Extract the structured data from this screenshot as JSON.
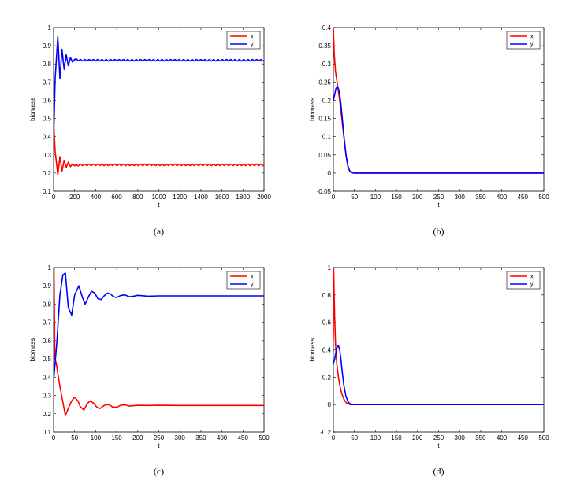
{
  "colors": {
    "x": "#ff0000",
    "y": "#0000ff",
    "axes": "#000000",
    "background": "#ffffff"
  },
  "chart_data": [
    {
      "id": "a",
      "type": "line",
      "caption": "(a)",
      "xlabel": "t",
      "ylabel": "biomass",
      "xlim": [
        0,
        2000
      ],
      "ylim": [
        0.1,
        1
      ],
      "xticks": [
        0,
        200,
        400,
        600,
        800,
        1000,
        1200,
        1400,
        1600,
        1800,
        2000
      ],
      "xtick_labels": [
        "0",
        "200",
        "400",
        "600",
        "800",
        "1000",
        "1200",
        "1400",
        "1600",
        "1800",
        "2000"
      ],
      "yticks": [
        0.1,
        0.2,
        0.3,
        0.4,
        0.5,
        0.6,
        0.7,
        0.8,
        0.9,
        1
      ],
      "ytick_labels": [
        "0.1",
        "0.2",
        "0.3",
        "0.4",
        "0.5",
        "0.6",
        "0.7",
        "0.8",
        "0.9",
        "1"
      ],
      "legend": "top-right",
      "grid": false,
      "series": [
        {
          "name": "x",
          "x": [
            0,
            15,
            40,
            60,
            80,
            100,
            120,
            140,
            160,
            180,
            200,
            250,
            400,
            800,
            1200,
            1600,
            2000
          ],
          "y": [
            0.48,
            0.32,
            0.19,
            0.29,
            0.21,
            0.27,
            0.23,
            0.26,
            0.235,
            0.25,
            0.24,
            0.245,
            0.245,
            0.245,
            0.245,
            0.245,
            0.245
          ]
        },
        {
          "name": "y",
          "x": [
            0,
            15,
            40,
            60,
            80,
            100,
            120,
            140,
            160,
            180,
            200,
            250,
            400,
            800,
            1200,
            1600,
            2000
          ],
          "y": [
            0.38,
            0.72,
            0.95,
            0.72,
            0.88,
            0.77,
            0.85,
            0.79,
            0.835,
            0.81,
            0.825,
            0.82,
            0.82,
            0.82,
            0.82,
            0.82,
            0.82
          ]
        }
      ]
    },
    {
      "id": "b",
      "type": "line",
      "caption": "(b)",
      "xlabel": "t",
      "ylabel": "biomass",
      "xlim": [
        0,
        500
      ],
      "ylim": [
        -0.05,
        0.4
      ],
      "xticks": [
        0,
        50,
        100,
        150,
        200,
        250,
        300,
        350,
        400,
        450,
        500
      ],
      "xtick_labels": [
        "0",
        "50",
        "100",
        "150",
        "200",
        "250",
        "300",
        "350",
        "400",
        "450",
        "500"
      ],
      "yticks": [
        -0.05,
        0,
        0.05,
        0.1,
        0.15,
        0.2,
        0.25,
        0.3,
        0.35,
        0.4
      ],
      "ytick_labels": [
        "-0.05",
        "0",
        "0.05",
        "0.1",
        "0.15",
        "0.2",
        "0.25",
        "0.3",
        "0.35",
        "0.4"
      ],
      "legend": "top-right",
      "grid": false,
      "series": [
        {
          "name": "x",
          "x": [
            0,
            2,
            5,
            10,
            15,
            20,
            25,
            30,
            35,
            40,
            45,
            50,
            60,
            100,
            500
          ],
          "y": [
            0.4,
            0.33,
            0.28,
            0.24,
            0.2,
            0.15,
            0.1,
            0.05,
            0.015,
            0.003,
            0.0005,
            0,
            0,
            0,
            0
          ]
        },
        {
          "name": "y",
          "x": [
            0,
            3,
            6,
            10,
            14,
            18,
            22,
            26,
            30,
            34,
            38,
            42,
            46,
            50,
            60,
            100,
            500
          ],
          "y": [
            0.2,
            0.215,
            0.232,
            0.238,
            0.225,
            0.19,
            0.14,
            0.09,
            0.05,
            0.022,
            0.008,
            0.002,
            0.0005,
            0,
            0,
            0,
            0
          ]
        }
      ]
    },
    {
      "id": "c",
      "type": "line",
      "caption": "(c)",
      "xlabel": "t",
      "ylabel": "biomass",
      "xlim": [
        0,
        500
      ],
      "ylim": [
        0.1,
        1
      ],
      "xticks": [
        0,
        50,
        100,
        150,
        200,
        250,
        300,
        350,
        400,
        450,
        500
      ],
      "xtick_labels": [
        "0",
        "50",
        "100",
        "150",
        "200",
        "250",
        "300",
        "350",
        "400",
        "450",
        "500"
      ],
      "yticks": [
        0.1,
        0.2,
        0.3,
        0.4,
        0.5,
        0.6,
        0.7,
        0.8,
        0.9,
        1
      ],
      "ytick_labels": [
        "0.1",
        "0.2",
        "0.3",
        "0.4",
        "0.5",
        "0.6",
        "0.7",
        "0.8",
        "0.9",
        "1"
      ],
      "legend": "top-right",
      "grid": false,
      "series": [
        {
          "name": "x",
          "x": [
            0,
            1,
            3,
            6,
            15,
            28,
            37,
            43,
            50,
            58,
            63,
            72,
            80,
            87,
            95,
            103,
            110,
            118,
            125,
            133,
            140,
            150,
            160,
            170,
            180,
            200,
            225,
            250,
            300,
            350,
            400,
            450,
            500
          ],
          "y": [
            0.48,
            1.0,
            0.5,
            0.48,
            0.35,
            0.19,
            0.24,
            0.27,
            0.29,
            0.27,
            0.24,
            0.22,
            0.255,
            0.27,
            0.258,
            0.235,
            0.228,
            0.242,
            0.25,
            0.248,
            0.237,
            0.235,
            0.247,
            0.248,
            0.242,
            0.246,
            0.245,
            0.246,
            0.245,
            0.245,
            0.245,
            0.245,
            0.245
          ]
        },
        {
          "name": "y",
          "x": [
            0,
            8,
            15,
            22,
            28,
            35,
            43,
            50,
            60,
            68,
            75,
            83,
            90,
            98,
            105,
            113,
            120,
            128,
            135,
            143,
            150,
            160,
            170,
            180,
            190,
            200,
            225,
            250,
            300,
            350,
            400,
            450,
            500
          ],
          "y": [
            0.38,
            0.6,
            0.85,
            0.96,
            0.97,
            0.78,
            0.74,
            0.85,
            0.9,
            0.84,
            0.8,
            0.84,
            0.87,
            0.86,
            0.83,
            0.825,
            0.845,
            0.86,
            0.855,
            0.84,
            0.836,
            0.848,
            0.85,
            0.84,
            0.843,
            0.848,
            0.843,
            0.845,
            0.845,
            0.845,
            0.845,
            0.845,
            0.845
          ]
        }
      ]
    },
    {
      "id": "d",
      "type": "line",
      "caption": "(d)",
      "xlabel": "t",
      "ylabel": "biomass",
      "xlim": [
        0,
        500
      ],
      "ylim": [
        -0.2,
        1
      ],
      "xticks": [
        0,
        50,
        100,
        150,
        200,
        250,
        300,
        350,
        400,
        450,
        500
      ],
      "xtick_labels": [
        "0",
        "50",
        "100",
        "150",
        "200",
        "250",
        "300",
        "350",
        "400",
        "450",
        "500"
      ],
      "yticks": [
        -0.2,
        0,
        0.2,
        0.4,
        0.6,
        0.8,
        1
      ],
      "ytick_labels": [
        "-0.2",
        "0",
        "0.2",
        "0.4",
        "0.6",
        "0.8",
        "1"
      ],
      "legend": "top-right",
      "grid": false,
      "series": [
        {
          "name": "x",
          "x": [
            0,
            0.5,
            1,
            2,
            3,
            5,
            8,
            12,
            16,
            20,
            25,
            30,
            35,
            40,
            60,
            100,
            500
          ],
          "y": [
            0.48,
            1.0,
            0.95,
            0.8,
            0.65,
            0.45,
            0.3,
            0.2,
            0.13,
            0.08,
            0.04,
            0.015,
            0.005,
            0,
            0,
            0,
            0
          ]
        },
        {
          "name": "y",
          "x": [
            0,
            3,
            6,
            9,
            12,
            15,
            18,
            21,
            25,
            30,
            35,
            40,
            45,
            50,
            60,
            100,
            500
          ],
          "y": [
            0.3,
            0.33,
            0.38,
            0.42,
            0.43,
            0.4,
            0.33,
            0.24,
            0.14,
            0.06,
            0.02,
            0.005,
            0.001,
            0,
            0,
            0,
            0
          ]
        }
      ]
    }
  ]
}
